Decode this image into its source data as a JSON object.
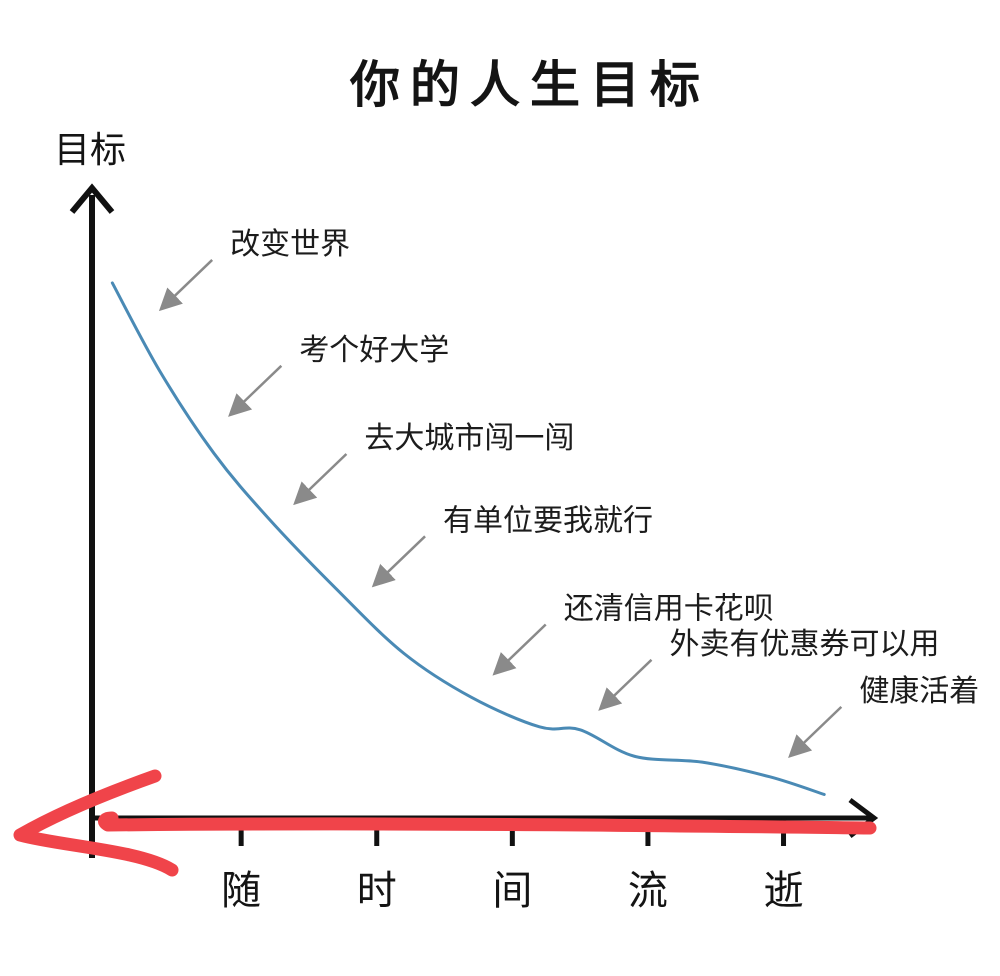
{
  "chart_data": {
    "type": "line",
    "title": "你的人生目标",
    "ylabel": "目标",
    "x_ticks": [
      "随",
      "时",
      "间",
      "流",
      "逝"
    ],
    "series": [
      {
        "color": "#4a8ab5",
        "x": [
          0.05,
          0.4,
          0.8,
          1.2,
          1.7,
          2.2,
          2.7,
          3.2,
          3.5,
          3.9,
          4.4,
          4.9,
          5.3
        ],
        "y": [
          9.1,
          7.6,
          6.2,
          5.1,
          3.9,
          2.8,
          2.05,
          1.55,
          1.5,
          1.05,
          0.95,
          0.7,
          0.4
        ]
      }
    ],
    "annotations": [
      {
        "text": "改变世界",
        "x": 0.27,
        "y": 8.3
      },
      {
        "text": "考个好大学",
        "x": 0.78,
        "y": 6.5
      },
      {
        "text": "去大城市闯一闯",
        "x": 1.26,
        "y": 5.0
      },
      {
        "text": "有单位要我就行",
        "x": 1.84,
        "y": 3.6
      },
      {
        "text": "还清信用卡花呗",
        "x": 2.73,
        "y": 2.1
      },
      {
        "text": "外卖有优惠券可以用",
        "x": 3.51,
        "y": 1.5
      },
      {
        "text": "健康活着",
        "x": 4.91,
        "y": 0.7
      }
    ],
    "x_range": [
      -0.1,
      5.8
    ],
    "y_range": [
      0,
      10
    ],
    "grid": false,
    "annotation_color": "#8a8a8a",
    "axis_color": "#111111",
    "marker_color": "#f0444a"
  }
}
